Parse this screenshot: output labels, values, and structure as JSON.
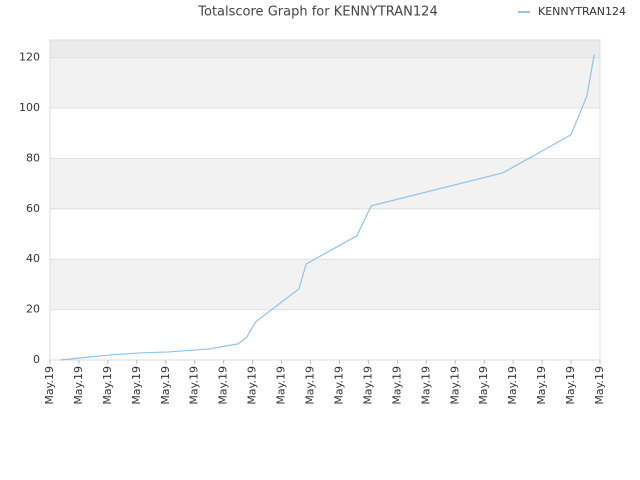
{
  "chart_data": {
    "type": "line",
    "title": "Totalscore Graph for KENNYTRAN124",
    "series": [
      {
        "name": "KENNYTRAN124",
        "color": "#8fc3ea",
        "x": [
          0.35,
          1.04,
          2.07,
          3.1,
          4.1,
          5.5,
          6.5,
          6.8,
          7.1,
          8.6,
          8.85,
          10.6,
          11.1,
          15.65,
          18.0,
          18.55,
          18.8
        ],
        "values": [
          0,
          0.8,
          2,
          2.8,
          3.2,
          4.4,
          6.4,
          9.1,
          15.1,
          28.2,
          38.1,
          49.3,
          61.2,
          74.3,
          89.4,
          104.9,
          121.2
        ]
      }
    ],
    "xlim": [
      0,
      19
    ],
    "xticks": [
      {
        "value": 0,
        "label": "May.19"
      },
      {
        "value": 1,
        "label": "May.19"
      },
      {
        "value": 2,
        "label": "May.19"
      },
      {
        "value": 3,
        "label": "May.19"
      },
      {
        "value": 4,
        "label": "May.19"
      },
      {
        "value": 5,
        "label": "May.19"
      },
      {
        "value": 6,
        "label": "May.19"
      },
      {
        "value": 7,
        "label": "May.19"
      },
      {
        "value": 8,
        "label": "May.19"
      },
      {
        "value": 9,
        "label": "May.19"
      },
      {
        "value": 10,
        "label": "May.19"
      },
      {
        "value": 11,
        "label": "May.19"
      },
      {
        "value": 12,
        "label": "May.19"
      },
      {
        "value": 13,
        "label": "May.19"
      },
      {
        "value": 14,
        "label": "May.19"
      },
      {
        "value": 15,
        "label": "May.19"
      },
      {
        "value": 16,
        "label": "May.19"
      },
      {
        "value": 17,
        "label": "May.19"
      },
      {
        "value": 18,
        "label": "May.19"
      },
      {
        "value": 19,
        "label": "May.19"
      }
    ],
    "ylim": [
      0,
      127
    ],
    "yticks": [
      0,
      20,
      40,
      60,
      80,
      100,
      120
    ],
    "grid": true,
    "legend": "top-right"
  }
}
